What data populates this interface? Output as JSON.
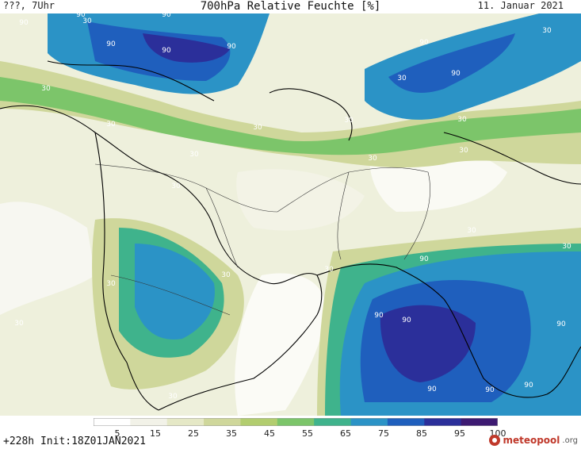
{
  "header": {
    "left": "???, 7Uhr",
    "title": "700hPa Relative Feuchte [%]",
    "right": "11. Januar 2021"
  },
  "footer": {
    "run_info": "+228h Init:18Z01JAN2021",
    "brand_name": "meteopool",
    "brand_tld": ".org"
  },
  "legend": {
    "ticks": [
      "5",
      "15",
      "25",
      "35",
      "45",
      "55",
      "65",
      "75",
      "85",
      "95",
      "100"
    ],
    "colors": [
      "#ffffff",
      "#f2f2e8",
      "#e5e8c6",
      "#cfd79b",
      "#b2cd6f",
      "#7cc56a",
      "#3fb38c",
      "#2b93c6",
      "#1f5fbd",
      "#2b2f9a",
      "#3d1a72"
    ]
  },
  "map": {
    "contour_labels": [
      "90",
      "90",
      "90",
      "90",
      "90",
      "90",
      "30",
      "30",
      "30",
      "30",
      "30",
      "30",
      "30",
      "30",
      "30",
      "30",
      "30",
      "30",
      "30",
      "30",
      "30",
      "30",
      "90",
      "90",
      "90",
      "90",
      "90",
      "90",
      "90",
      "90",
      "30",
      "30",
      "30",
      "90"
    ]
  }
}
